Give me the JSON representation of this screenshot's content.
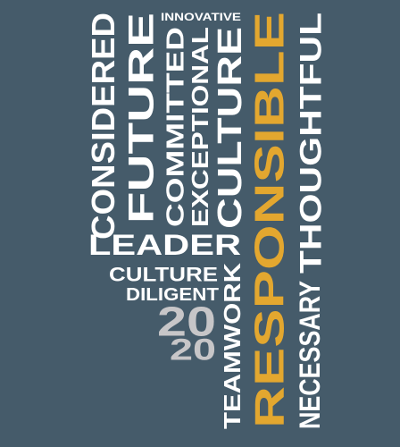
{
  "background_color": "#455b6a",
  "colors": {
    "white": "#ffffff",
    "gold": "#e3a72f",
    "gray": "#c7c6c8"
  },
  "words": [
    {
      "id": "word-considered",
      "text": "CONSIDERED",
      "color": "white"
    },
    {
      "id": "word-future",
      "text": "FUTURE",
      "color": "white"
    },
    {
      "id": "word-innovative",
      "text": "INNOVATIVE",
      "color": "white"
    },
    {
      "id": "word-committed",
      "text": "COMMITTED",
      "color": "white"
    },
    {
      "id": "word-exceptional",
      "text": "EXCEPTIONAL",
      "color": "white"
    },
    {
      "id": "word-culture-vertical",
      "text": "CULTURE",
      "color": "white"
    },
    {
      "id": "word-responsible",
      "text": "RESPONSIBLE",
      "color": "gold"
    },
    {
      "id": "word-thoughtful",
      "text": "THOUGHTFUL",
      "color": "white"
    },
    {
      "id": "word-necessary",
      "text": "NECESSARY",
      "color": "white"
    },
    {
      "id": "word-leader",
      "text": "LEADER",
      "color": "white"
    },
    {
      "id": "word-culture-horizontal",
      "text": "CULTURE",
      "color": "white"
    },
    {
      "id": "word-diligent",
      "text": "DILIGENT",
      "color": "white"
    },
    {
      "id": "word-teamwork",
      "text": "TEAMWORK",
      "color": "white"
    },
    {
      "id": "word-year-top",
      "text": "20",
      "color": "gray"
    },
    {
      "id": "word-year-bottom",
      "text": "20",
      "color": "gray"
    }
  ]
}
